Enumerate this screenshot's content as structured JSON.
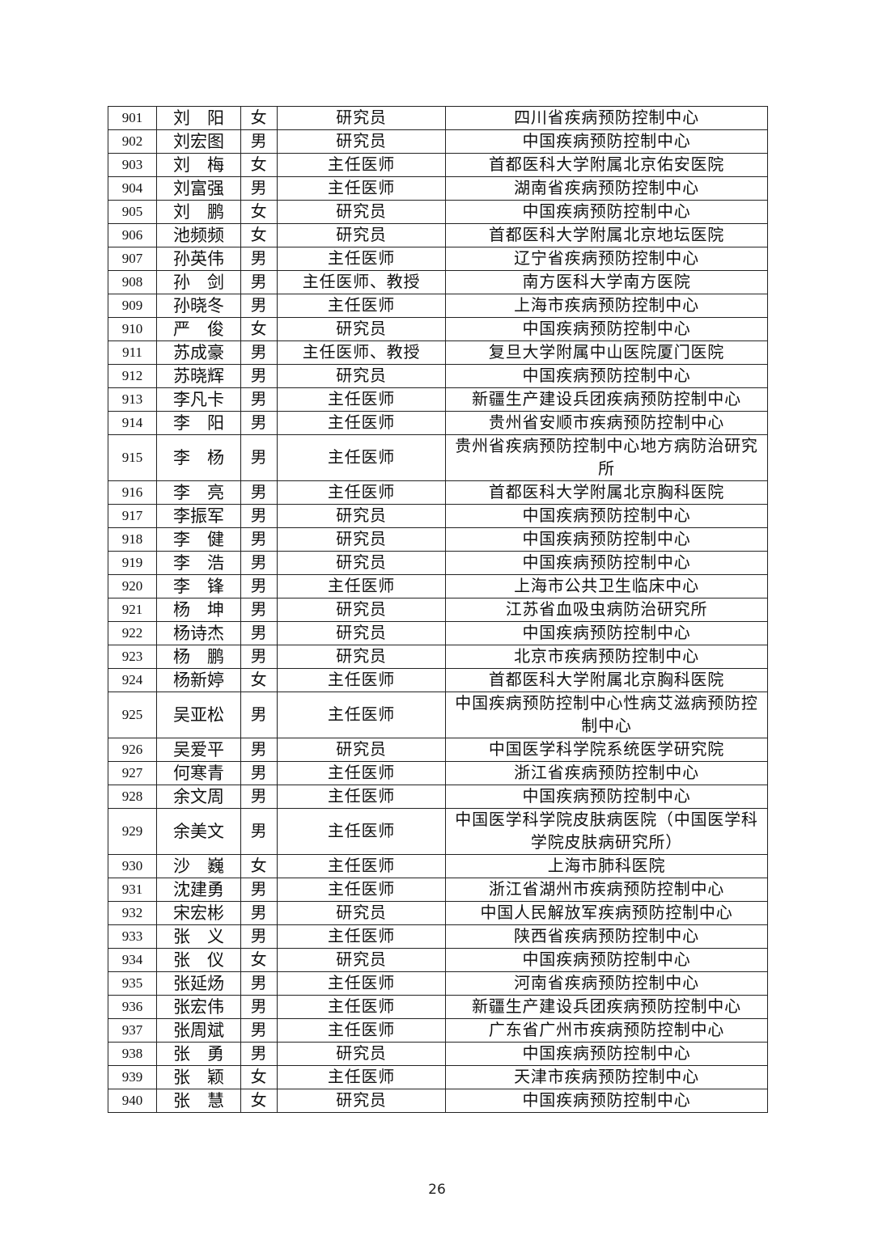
{
  "table": {
    "rows": [
      [
        "901",
        "刘　阳",
        "女",
        "研究员",
        "四川省疾病预防控制中心"
      ],
      [
        "902",
        "刘宏图",
        "男",
        "研究员",
        "中国疾病预防控制中心"
      ],
      [
        "903",
        "刘　梅",
        "女",
        "主任医师",
        "首都医科大学附属北京佑安医院"
      ],
      [
        "904",
        "刘富强",
        "男",
        "主任医师",
        "湖南省疾病预防控制中心"
      ],
      [
        "905",
        "刘　鹏",
        "女",
        "研究员",
        "中国疾病预防控制中心"
      ],
      [
        "906",
        "池频频",
        "女",
        "研究员",
        "首都医科大学附属北京地坛医院"
      ],
      [
        "907",
        "孙英伟",
        "男",
        "主任医师",
        "辽宁省疾病预防控制中心"
      ],
      [
        "908",
        "孙　剑",
        "男",
        "主任医师、教授",
        "南方医科大学南方医院"
      ],
      [
        "909",
        "孙晓冬",
        "男",
        "主任医师",
        "上海市疾病预防控制中心"
      ],
      [
        "910",
        "严　俊",
        "女",
        "研究员",
        "中国疾病预防控制中心"
      ],
      [
        "911",
        "苏成豪",
        "男",
        "主任医师、教授",
        "复旦大学附属中山医院厦门医院"
      ],
      [
        "912",
        "苏晓辉",
        "男",
        "研究员",
        "中国疾病预防控制中心"
      ],
      [
        "913",
        "李凡卡",
        "男",
        "主任医师",
        "新疆生产建设兵团疾病预防控制中心"
      ],
      [
        "914",
        "李　阳",
        "男",
        "主任医师",
        "贵州省安顺市疾病预防控制中心"
      ],
      [
        "915",
        "李　杨",
        "男",
        "主任医师",
        "贵州省疾病预防控制中心地方病防治研究所"
      ],
      [
        "916",
        "李　亮",
        "男",
        "主任医师",
        "首都医科大学附属北京胸科医院"
      ],
      [
        "917",
        "李振军",
        "男",
        "研究员",
        "中国疾病预防控制中心"
      ],
      [
        "918",
        "李　健",
        "男",
        "研究员",
        "中国疾病预防控制中心"
      ],
      [
        "919",
        "李　浩",
        "男",
        "研究员",
        "中国疾病预防控制中心"
      ],
      [
        "920",
        "李　锋",
        "男",
        "主任医师",
        "上海市公共卫生临床中心"
      ],
      [
        "921",
        "杨　坤",
        "男",
        "研究员",
        "江苏省血吸虫病防治研究所"
      ],
      [
        "922",
        "杨诗杰",
        "男",
        "研究员",
        "中国疾病预防控制中心"
      ],
      [
        "923",
        "杨　鹏",
        "男",
        "研究员",
        "北京市疾病预防控制中心"
      ],
      [
        "924",
        "杨新婷",
        "女",
        "主任医师",
        "首都医科大学附属北京胸科医院"
      ],
      [
        "925",
        "吴亚松",
        "男",
        "主任医师",
        "中国疾病预防控制中心性病艾滋病预防控制中心"
      ],
      [
        "926",
        "吴爱平",
        "男",
        "研究员",
        "中国医学科学院系统医学研究院"
      ],
      [
        "927",
        "何寒青",
        "男",
        "主任医师",
        "浙江省疾病预防控制中心"
      ],
      [
        "928",
        "余文周",
        "男",
        "主任医师",
        "中国疾病预防控制中心"
      ],
      [
        "929",
        "余美文",
        "男",
        "主任医师",
        "中国医学科学院皮肤病医院（中国医学科学院皮肤病研究所）"
      ],
      [
        "930",
        "沙　巍",
        "女",
        "主任医师",
        "上海市肺科医院"
      ],
      [
        "931",
        "沈建勇",
        "男",
        "主任医师",
        "浙江省湖州市疾病预防控制中心"
      ],
      [
        "932",
        "宋宏彬",
        "男",
        "研究员",
        "中国人民解放军疾病预防控制中心"
      ],
      [
        "933",
        "张　义",
        "男",
        "主任医师",
        "陕西省疾病预防控制中心"
      ],
      [
        "934",
        "张　仪",
        "女",
        "研究员",
        "中国疾病预防控制中心"
      ],
      [
        "935",
        "张延炀",
        "男",
        "主任医师",
        "河南省疾病预防控制中心"
      ],
      [
        "936",
        "张宏伟",
        "男",
        "主任医师",
        "新疆生产建设兵团疾病预防控制中心"
      ],
      [
        "937",
        "张周斌",
        "男",
        "主任医师",
        "广东省广州市疾病预防控制中心"
      ],
      [
        "938",
        "张　勇",
        "男",
        "研究员",
        "中国疾病预防控制中心"
      ],
      [
        "939",
        "张　颖",
        "女",
        "主任医师",
        "天津市疾病预防控制中心"
      ],
      [
        "940",
        "张　慧",
        "女",
        "研究员",
        "中国疾病预防控制中心"
      ]
    ]
  },
  "footer": {
    "page_number": "26"
  }
}
